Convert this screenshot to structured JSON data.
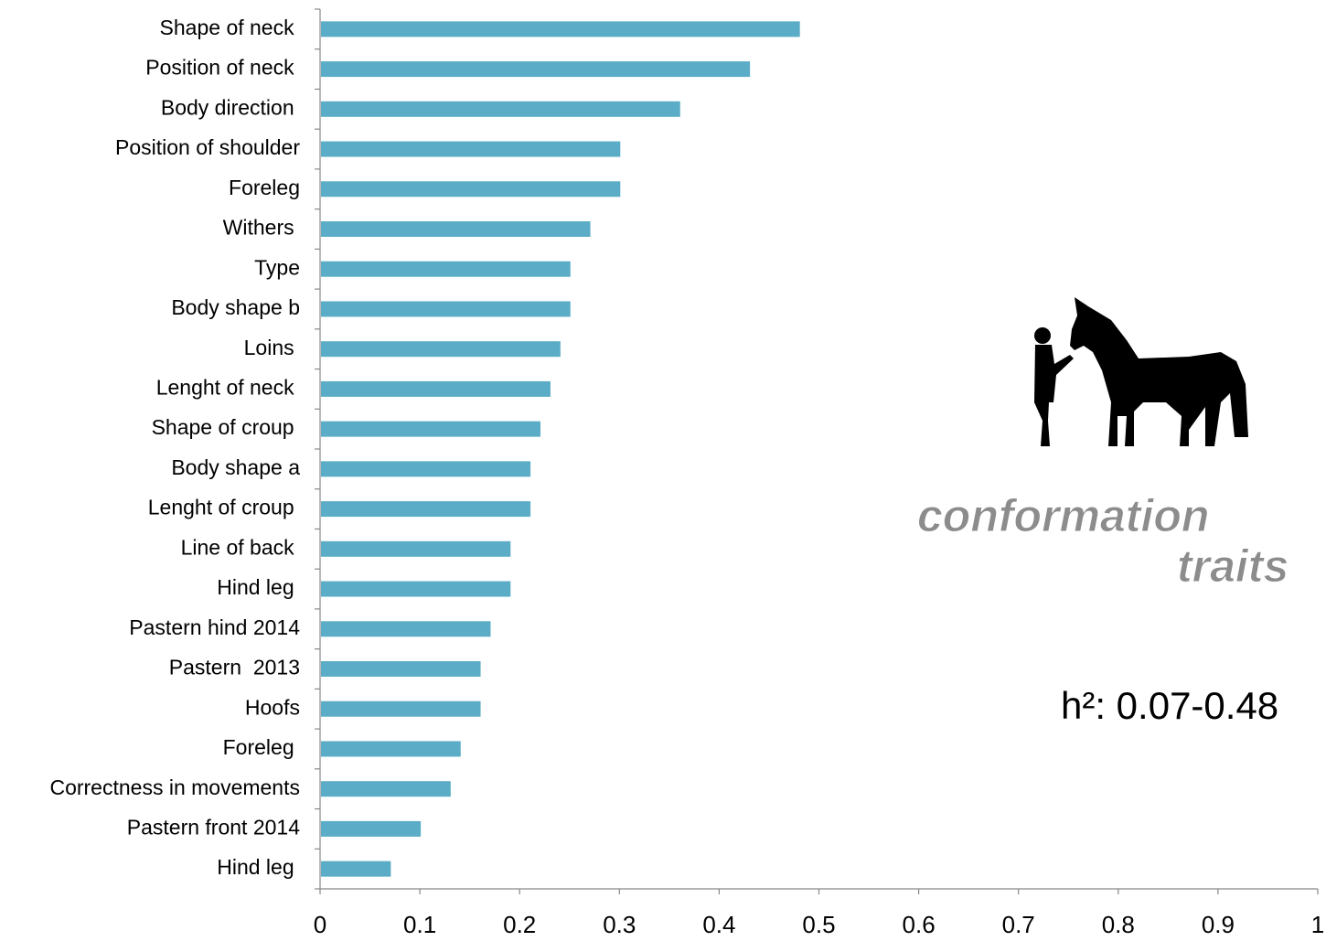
{
  "chart_data": {
    "type": "bar",
    "orientation": "horizontal",
    "categories": [
      "Shape of neck ",
      "Position of neck ",
      "Body direction ",
      "Position of shoulder",
      "Foreleg",
      "Withers ",
      "Type",
      "Body shape b",
      "Loins ",
      "Lenght of neck ",
      "Shape of croup ",
      "Body shape a",
      "Lenght of croup ",
      "Line of back ",
      "Hind leg ",
      "Pastern hind 2014",
      "Pastern  2013",
      "Hoofs",
      "Foreleg ",
      "Correctness in movements",
      "Pastern front 2014",
      "Hind leg "
    ],
    "values": [
      0.48,
      0.43,
      0.36,
      0.3,
      0.3,
      0.27,
      0.25,
      0.25,
      0.24,
      0.23,
      0.22,
      0.21,
      0.21,
      0.19,
      0.19,
      0.17,
      0.16,
      0.16,
      0.14,
      0.13,
      0.1,
      0.07
    ],
    "color": "#5badc7",
    "xlim": [
      0,
      1
    ],
    "xticks": [
      0,
      0.1,
      0.2,
      0.3,
      0.4,
      0.5,
      0.6,
      0.7,
      0.8,
      0.9,
      1
    ],
    "grid": false,
    "annotations": [
      "conformation",
      "traits",
      "h²: 0.07-0.48"
    ]
  }
}
